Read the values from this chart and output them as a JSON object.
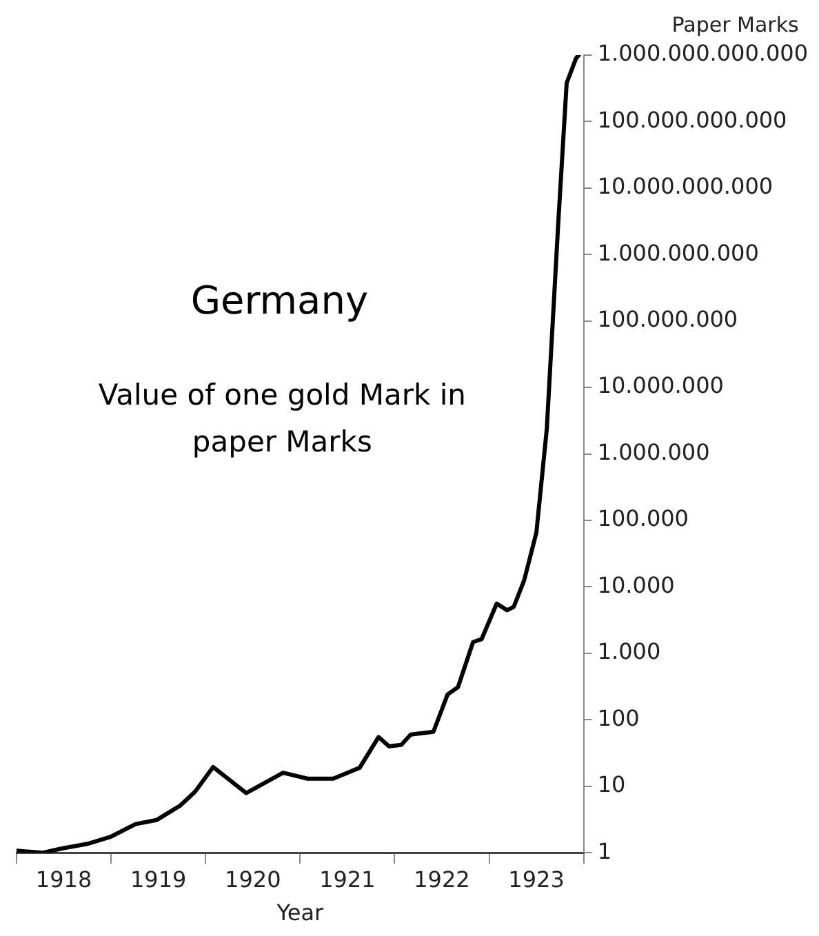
{
  "chart_data": {
    "type": "line",
    "title": "Germany",
    "subtitle": "Value of one gold Mark in paper Marks",
    "xlabel": "Year",
    "ylabel": "Paper Marks",
    "x": [
      1918.0,
      1918.28,
      1918.48,
      1918.75,
      1919.0,
      1919.26,
      1919.48,
      1919.73,
      1919.89,
      1920.08,
      1920.43,
      1920.82,
      1921.08,
      1921.35,
      1921.63,
      1921.83,
      1921.94,
      1922.07,
      1922.17,
      1922.41,
      1922.56,
      1922.67,
      1922.83,
      1922.92,
      1923.08,
      1923.19,
      1923.26,
      1923.37,
      1923.5,
      1923.61,
      1923.73,
      1923.82,
      1923.92,
      1923.95
    ],
    "series": [
      {
        "color": "#000000",
        "values": [
          1.07,
          1.0,
          1.16,
          1.36,
          1.75,
          2.7,
          3.1,
          5.1,
          8.3,
          19.5,
          7.9,
          16,
          13,
          13,
          19,
          55,
          40,
          42,
          60,
          66,
          240,
          310,
          1480,
          1630,
          5600,
          4450,
          5000,
          12500,
          66000,
          2400000,
          2800000000,
          380000000000,
          900000000000,
          1000000000000
        ]
      }
    ],
    "xlim": [
      1918,
      1924
    ],
    "xticks": [
      {
        "value": 1918,
        "label": null
      },
      {
        "value": 1918.5,
        "label": "1918"
      },
      {
        "value": 1919,
        "label": null
      },
      {
        "value": 1919.5,
        "label": "1919"
      },
      {
        "value": 1920,
        "label": null
      },
      {
        "value": 1920.5,
        "label": "1920"
      },
      {
        "value": 1921,
        "label": null
      },
      {
        "value": 1921.5,
        "label": "1921"
      },
      {
        "value": 1922,
        "label": null
      },
      {
        "value": 1922.5,
        "label": "1922"
      },
      {
        "value": 1923,
        "label": null
      },
      {
        "value": 1923.5,
        "label": "1923"
      },
      {
        "value": 1924,
        "label": null
      }
    ],
    "ylim": [
      1,
      1000000000000
    ],
    "yticks": [
      1,
      10,
      100,
      {
        "value": 1000,
        "label": "1.000"
      },
      {
        "value": 10000,
        "label": "10.000"
      },
      {
        "value": 100000,
        "label": "100.000"
      },
      {
        "value": 1000000,
        "label": "1.000.000"
      },
      {
        "value": 10000000,
        "label": "10.000.000"
      },
      {
        "value": 100000000,
        "label": "100.000.000"
      },
      {
        "value": 1000000000,
        "label": "1.000.000.000"
      },
      {
        "value": 10000000000,
        "label": "10.000.000.000"
      },
      {
        "value": 100000000000,
        "label": "100.000.000.000"
      },
      {
        "value": 1000000000000,
        "label": "1.000.000.000.000"
      }
    ],
    "log": "y",
    "grid": false,
    "legend": false,
    "marker": "none",
    "line_style": "solid"
  }
}
